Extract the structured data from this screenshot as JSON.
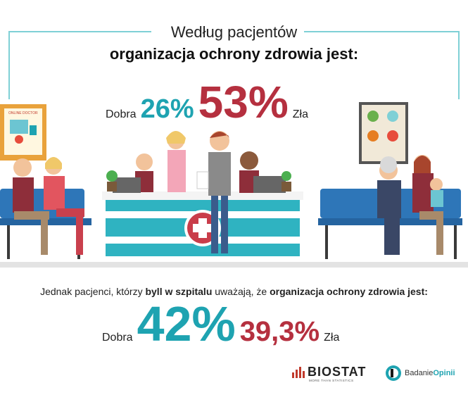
{
  "header": {
    "title_line1": "Według pacjentów",
    "title_line2": "organizacja ochrony zdrowia jest:"
  },
  "top_stats": {
    "good_label": "Dobra",
    "good_value": "26%",
    "bad_value": "53%",
    "bad_label": "Zła"
  },
  "middle": {
    "text_part1": "Jednak pacjenci, którzy ",
    "text_bold1": "byll w szpitalu",
    "text_part2": " uważają, że ",
    "text_bold2": "organizacja ochrony zdrowia jest:"
  },
  "bottom_stats": {
    "good_label": "Dobra",
    "good_value": "42%",
    "bad_value": "39,3%",
    "bad_label": "Zła"
  },
  "scene": {
    "poster_text": "ONLINE DOCTOR"
  },
  "logos": {
    "biostat": "BIOSTAT",
    "biostat_tagline": "MORE THAN STATISTICS",
    "badanie": "Badanie",
    "opinii": "Opinii"
  },
  "colors": {
    "good": "#1ea3b1",
    "bad": "#b5303f",
    "frame": "#7fd0d6"
  }
}
